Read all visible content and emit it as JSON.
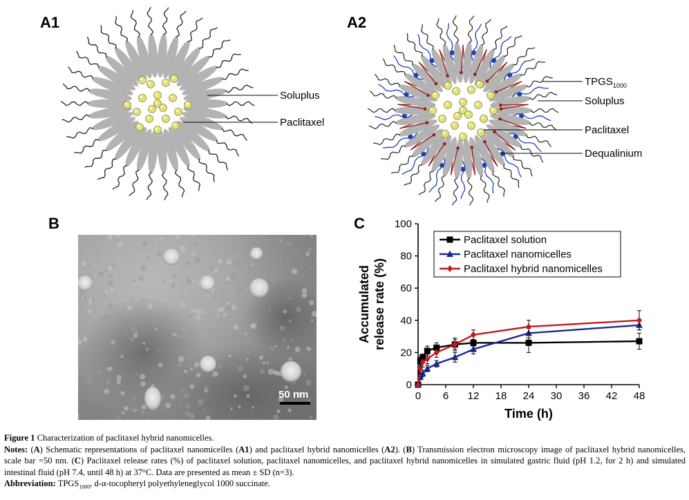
{
  "panels": {
    "a1": {
      "letter": "A1",
      "labels": [
        "Soluplus",
        "Paclitaxel"
      ]
    },
    "a2": {
      "letter": "A2",
      "tpgs_label": "TPGS",
      "tpgs_sub": "1000",
      "labels": [
        "Soluplus",
        "Paclitaxel",
        "Dequalinium"
      ]
    },
    "b": {
      "letter": "B",
      "scale_bar": "50 nm"
    },
    "c": {
      "letter": "C"
    }
  },
  "colors": {
    "soluplus_gray": "#b3b3b3",
    "paclitaxel_yellow": "#e6e07a",
    "tpgs_blue": "#1f3fb8",
    "dequalinium_red": "#9b1b1b",
    "series_solution": "#000000",
    "series_nano": "#1a2a8c",
    "series_hybrid": "#c41a1a"
  },
  "chart_data": {
    "type": "line",
    "xlabel": "Time (h)",
    "ylabel": "Accumulated release rate (%)",
    "ylabel_lines": [
      "Accumulated",
      "release rate (%)"
    ],
    "xlim": [
      0,
      48
    ],
    "ylim": [
      0,
      100
    ],
    "xticks": [
      0,
      6,
      12,
      18,
      24,
      30,
      36,
      42,
      48
    ],
    "yticks": [
      0,
      20,
      40,
      60,
      80,
      100
    ],
    "legend_position": "top-right",
    "series": [
      {
        "name": "Paclitaxel solution",
        "marker": "square",
        "x": [
          0,
          0.5,
          1,
          2,
          4,
          8,
          12,
          24,
          48
        ],
        "y": [
          0,
          15,
          17,
          21,
          23,
          25,
          26,
          26,
          27
        ],
        "err": [
          0,
          2,
          2,
          3,
          3,
          3,
          2,
          6,
          5
        ]
      },
      {
        "name": "Paclitaxel nanomicelles",
        "marker": "triangle",
        "x": [
          0,
          0.5,
          1,
          2,
          4,
          8,
          12,
          24,
          48
        ],
        "y": [
          0,
          5,
          7,
          10,
          13,
          17,
          22,
          32,
          37
        ],
        "err": [
          0,
          2,
          2,
          2,
          2,
          3,
          3,
          3,
          3
        ]
      },
      {
        "name": "Paclitaxel hybrid nanomicelles",
        "marker": "diamond",
        "x": [
          0,
          0.5,
          1,
          2,
          4,
          8,
          12,
          24,
          48
        ],
        "y": [
          0,
          10,
          14,
          16,
          20,
          25,
          31,
          36,
          40
        ],
        "err": [
          0,
          3,
          3,
          3,
          3,
          4,
          3,
          4,
          6
        ]
      }
    ]
  },
  "caption": {
    "figure_label": "Figure 1",
    "figure_title": "Characterization of paclitaxel hybrid nanomicelles.",
    "notes_label": "Notes:",
    "notes_segments": [
      {
        "t": " (",
        "b": false
      },
      {
        "t": "A",
        "b": true
      },
      {
        "t": ") Schematic representations of paclitaxel nanomicelles (",
        "b": false
      },
      {
        "t": "A1",
        "b": true
      },
      {
        "t": ") and paclitaxel hybrid nanomicelles (",
        "b": false
      },
      {
        "t": "A2",
        "b": true
      },
      {
        "t": "). (",
        "b": false
      },
      {
        "t": "B",
        "b": true
      },
      {
        "t": ") Transmission electron microscopy image of paclitaxel hybrid nanomicelles, scale bar =50 nm. (",
        "b": false
      },
      {
        "t": "C",
        "b": true
      },
      {
        "t": ") Paclitaxel release rates (%) of paclitaxel solution, paclitaxel nanomicelles, and paclitaxel hybrid nanomicelles in simulated gastric fluid (pH 1.2, for 2 h) and simulated intestinal fluid (pH 7.4, until 48 h) at 37°C. Data are presented as mean ± SD (n=3).",
        "b": false
      }
    ],
    "abbrev_label": "Abbreviation:",
    "abbrev_term": "TPGS",
    "abbrev_sub": "1000",
    "abbrev_def": ", d-α-tocopheryl polyethyleneglycol 1000 succinate."
  }
}
